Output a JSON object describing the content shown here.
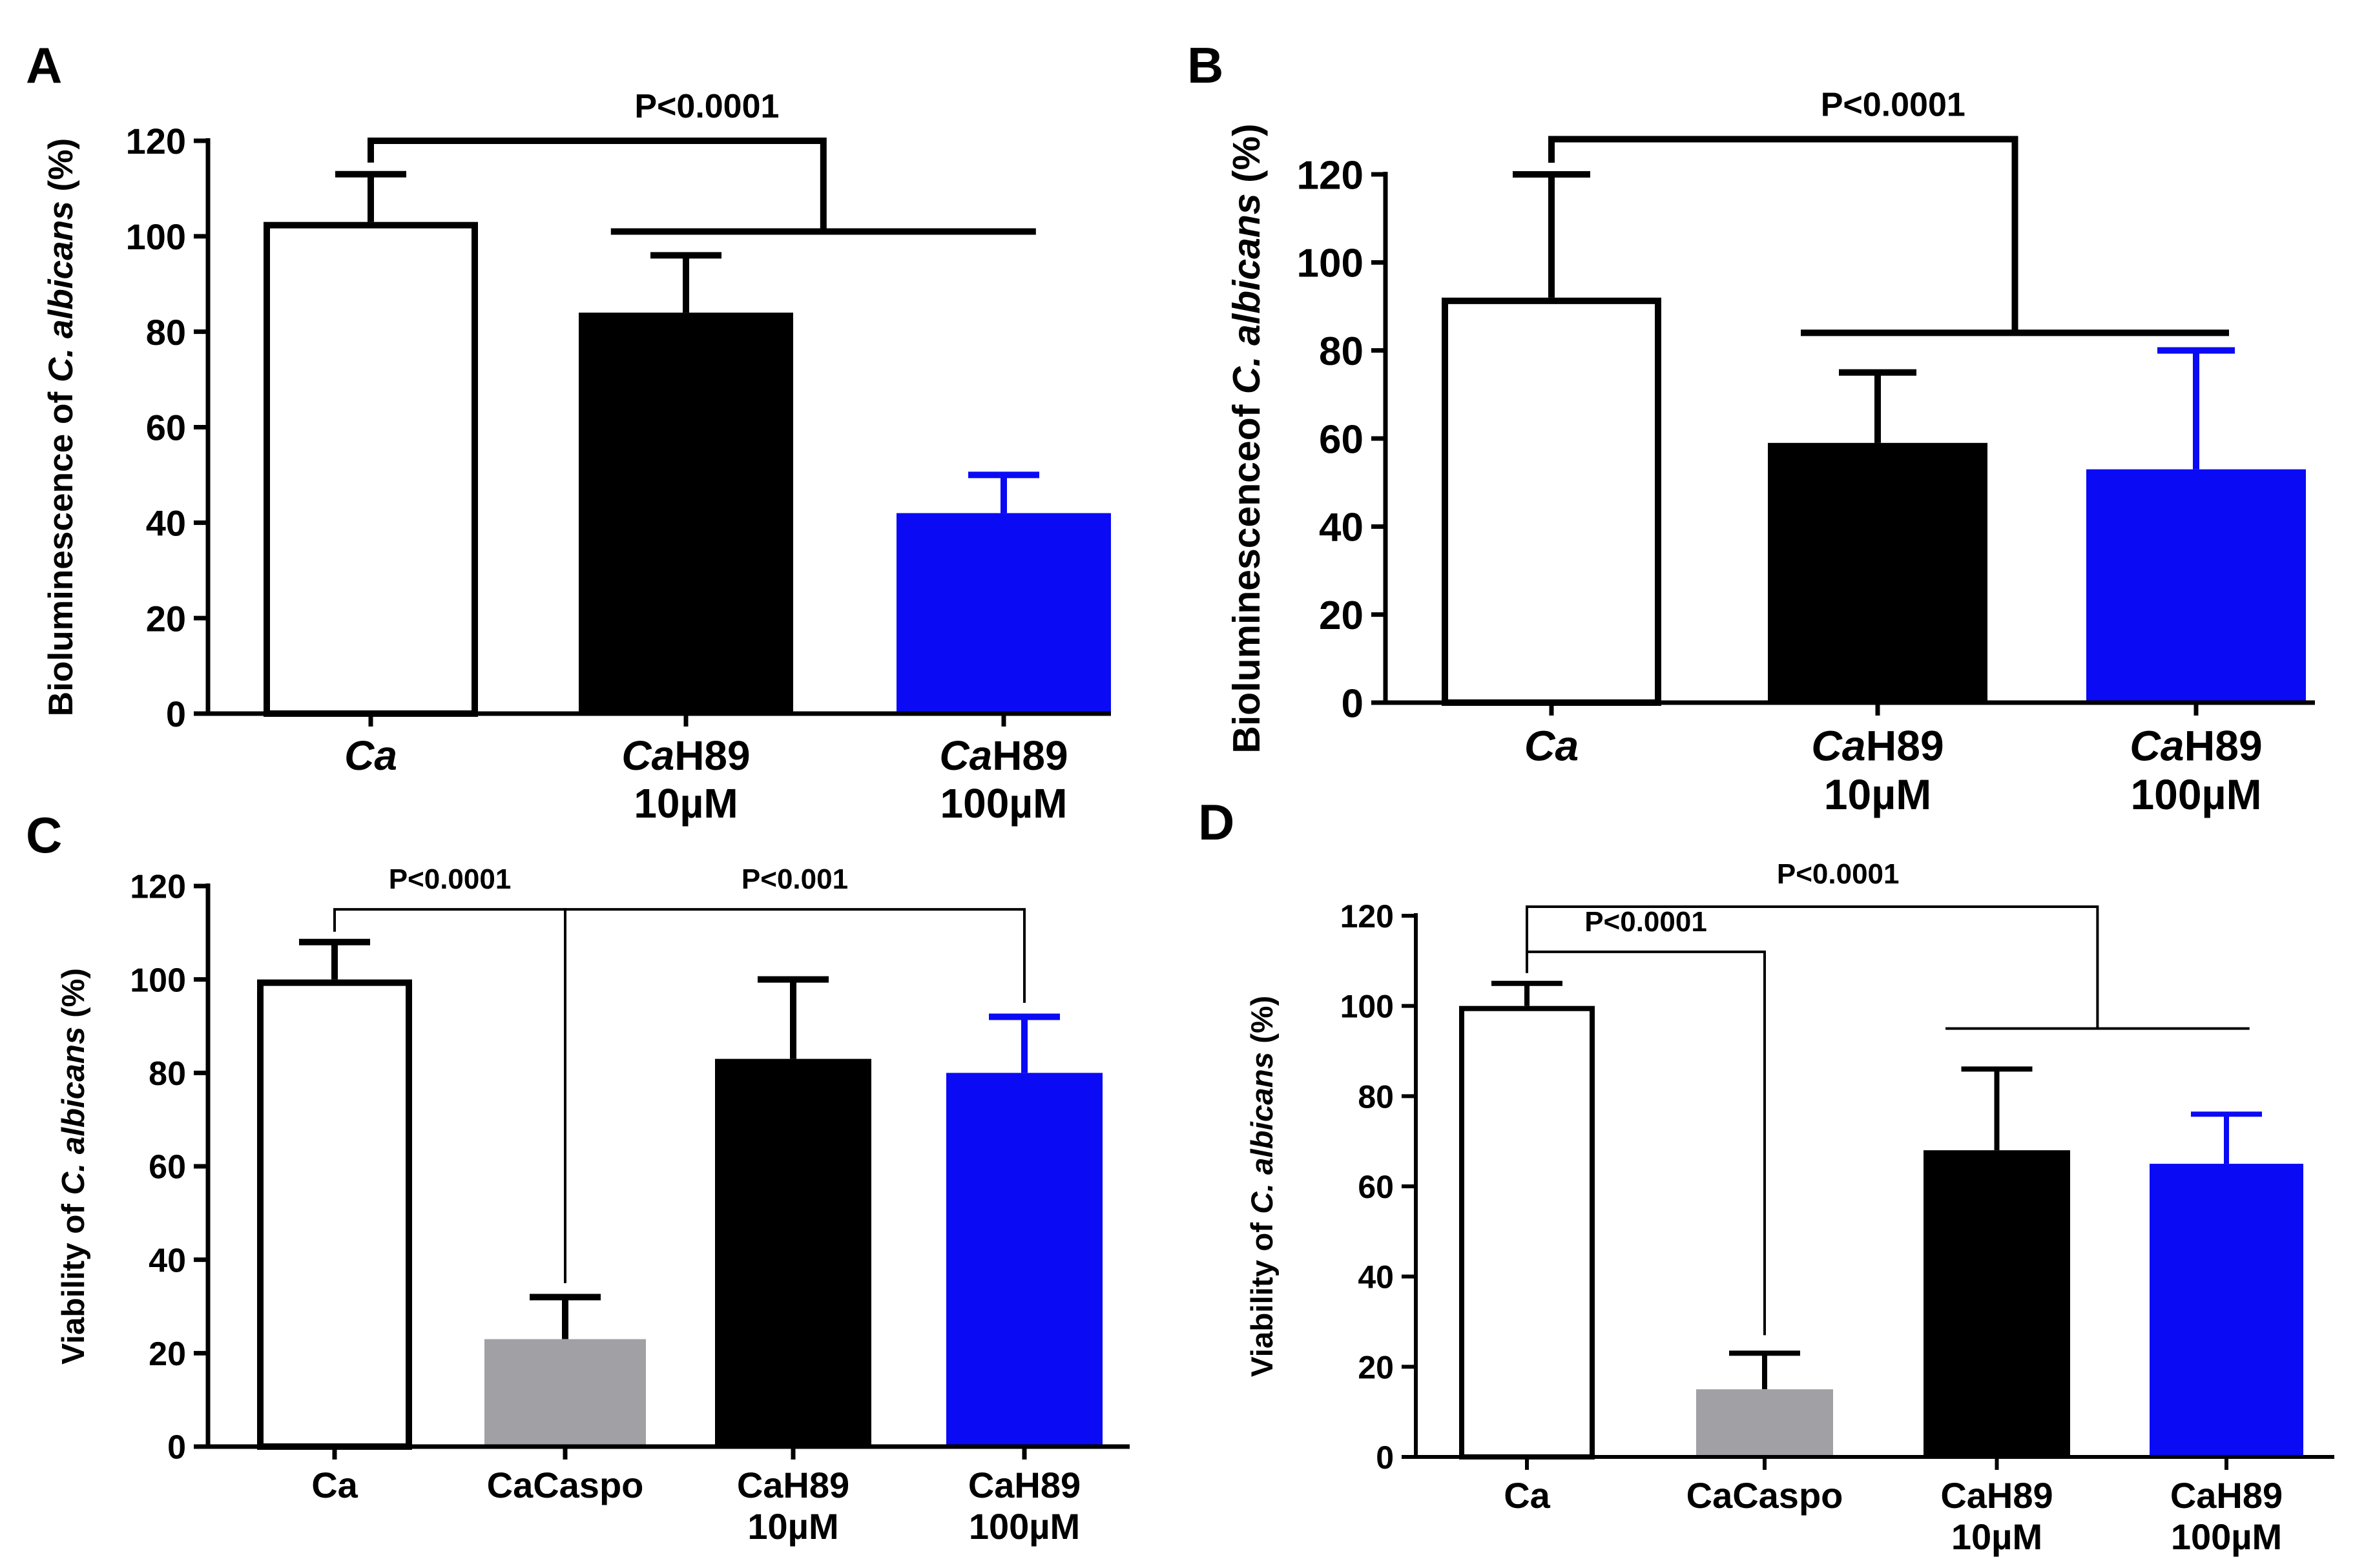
{
  "chart_data": [
    {
      "panel": "A",
      "type": "bar",
      "categories": [
        {
          "parts": [
            {
              "t": "Ca",
              "i": true
            }
          ]
        },
        {
          "parts": [
            {
              "t": "Ca",
              "i": true
            },
            {
              "t": "H89",
              "i": false
            }
          ],
          "line2": "10µM"
        },
        {
          "parts": [
            {
              "t": "Ca",
              "i": true
            },
            {
              "t": "H89",
              "i": false
            }
          ],
          "line2": "100µM"
        }
      ],
      "values": [
        103,
        84,
        42
      ],
      "errors": [
        10,
        12,
        8
      ],
      "colors": [
        "#ffffff",
        "#000000",
        "#0a0af5"
      ],
      "error_colors": [
        "#000000",
        "#000000",
        "#0a0af5"
      ],
      "ylabel": [
        {
          "t": "Bioluminescence of ",
          "i": false
        },
        {
          "t": "C. albicans",
          "i": true
        },
        {
          "t": " (%)",
          "i": false
        }
      ],
      "ylim": [
        0,
        120
      ],
      "yticks": [
        0,
        20,
        40,
        60,
        80,
        100,
        120
      ],
      "annotations": [
        {
          "text": "P<0.0001",
          "from": 0,
          "to": [
            1,
            2
          ],
          "level": 120,
          "sub_level": 101
        }
      ]
    },
    {
      "panel": "B",
      "type": "bar",
      "categories": [
        {
          "parts": [
            {
              "t": "Ca",
              "i": true
            }
          ]
        },
        {
          "parts": [
            {
              "t": "Ca",
              "i": true
            },
            {
              "t": "H89",
              "i": false
            }
          ],
          "line2": "10µM"
        },
        {
          "parts": [
            {
              "t": "Ca",
              "i": true
            },
            {
              "t": "H89",
              "i": false
            }
          ],
          "line2": "100µM"
        }
      ],
      "values": [
        92,
        59,
        53
      ],
      "errors": [
        28,
        16,
        27
      ],
      "colors": [
        "#ffffff",
        "#000000",
        "#0a0af5"
      ],
      "error_colors": [
        "#000000",
        "#000000",
        "#0a0af5"
      ],
      "ylabel": [
        {
          "t": "Bioluminescenceof ",
          "i": false
        },
        {
          "t": "C. albicans",
          "i": true
        },
        {
          "t": " (%)",
          "i": false
        }
      ],
      "ylim": [
        0,
        120
      ],
      "yticks": [
        0,
        20,
        40,
        60,
        80,
        100,
        120
      ],
      "annotations": [
        {
          "text": "P<0.0001",
          "from": 0,
          "to": [
            1,
            2
          ],
          "level": 128,
          "sub_level": 84
        }
      ]
    },
    {
      "panel": "C",
      "type": "bar",
      "categories": [
        {
          "parts": [
            {
              "t": "Ca",
              "i": false
            }
          ]
        },
        {
          "parts": [
            {
              "t": "CaCaspo",
              "i": false
            }
          ]
        },
        {
          "parts": [
            {
              "t": "CaH89",
              "i": false
            }
          ],
          "line2": "10µM"
        },
        {
          "parts": [
            {
              "t": "CaH89",
              "i": false
            }
          ],
          "line2": "100µM"
        }
      ],
      "values": [
        100,
        23,
        83,
        80
      ],
      "errors": [
        8,
        9,
        17,
        12
      ],
      "colors": [
        "#ffffff",
        "#a1a1a5",
        "#000000",
        "#0a0af5"
      ],
      "error_colors": [
        "#000000",
        "#000000",
        "#000000",
        "#0a0af5"
      ],
      "ylabel": [
        {
          "t": "Viability of ",
          "i": false
        },
        {
          "t": "C. albicans",
          "i": true
        },
        {
          "t": "  (%)",
          "i": false
        }
      ],
      "ylim": [
        0,
        120
      ],
      "yticks": [
        0,
        20,
        40,
        60,
        80,
        100,
        120
      ],
      "annotations": [
        {
          "text": "P<0.0001",
          "from": 0,
          "to": 1,
          "level": 115,
          "drop_to": 35
        },
        {
          "text": "P<0.001",
          "from": 1,
          "to": 3,
          "level": 115,
          "drop_to": 95
        }
      ]
    },
    {
      "panel": "D",
      "type": "bar",
      "categories": [
        {
          "parts": [
            {
              "t": "Ca",
              "i": false
            }
          ]
        },
        {
          "parts": [
            {
              "t": "CaCaspo",
              "i": false
            }
          ]
        },
        {
          "parts": [
            {
              "t": "CaH89",
              "i": false
            }
          ],
          "line2": "10µM"
        },
        {
          "parts": [
            {
              "t": "CaH89",
              "i": false
            }
          ],
          "line2": "100µM"
        }
      ],
      "values": [
        100,
        15,
        68,
        65
      ],
      "errors": [
        5,
        8,
        18,
        11
      ],
      "colors": [
        "#ffffff",
        "#a1a1a5",
        "#000000",
        "#0a0af5"
      ],
      "error_colors": [
        "#000000",
        "#000000",
        "#000000",
        "#0a0af5"
      ],
      "ylabel": [
        {
          "t": "Viability of ",
          "i": false
        },
        {
          "t": "C. albicans",
          "i": true
        },
        {
          "t": " (%)",
          "i": false
        }
      ],
      "ylim": [
        0,
        120
      ],
      "yticks": [
        0,
        20,
        40,
        60,
        80,
        100,
        120
      ],
      "annotations": [
        {
          "text": "P<0.0001",
          "from": 0,
          "to": 1,
          "level": 112,
          "drop_to": 27
        },
        {
          "text": "P<0.0001",
          "from": 0,
          "to": [
            2,
            3
          ],
          "level": 122,
          "sub_level": 95
        }
      ]
    }
  ]
}
